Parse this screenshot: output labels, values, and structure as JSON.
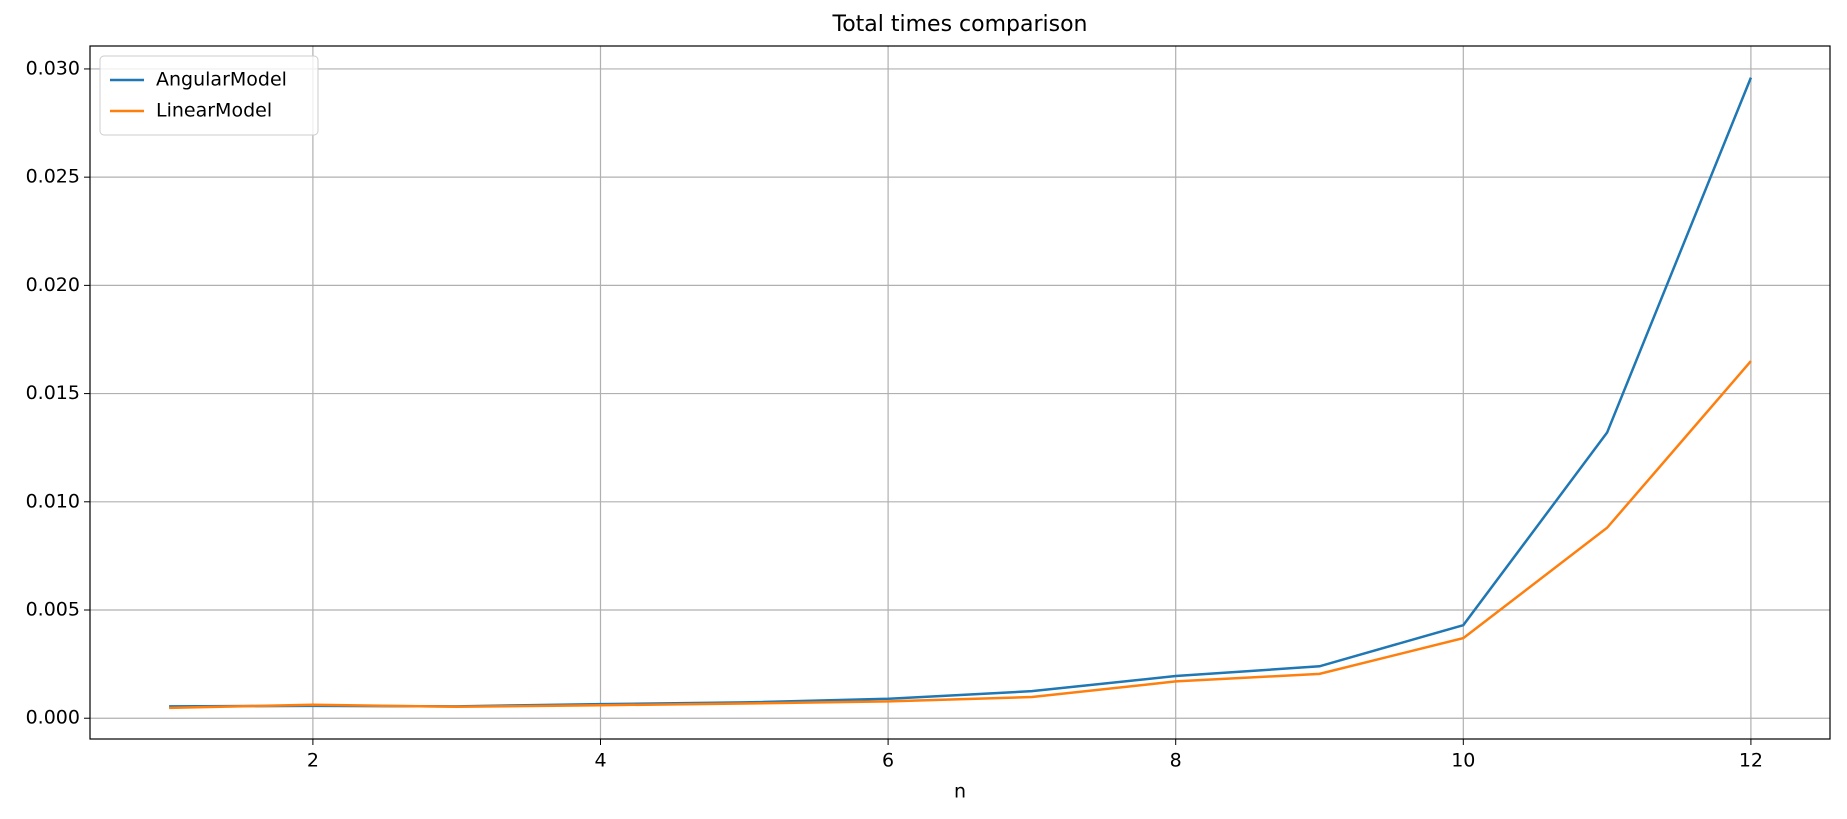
{
  "chart_data": {
    "type": "line",
    "title": "Total times comparison",
    "xlabel": "n",
    "x": [
      1,
      2,
      3,
      4,
      5,
      6,
      7,
      8,
      9,
      10,
      11,
      12
    ],
    "series": [
      {
        "name": "AngularModel",
        "color": "#1f77b4",
        "values": [
          0.00055,
          0.00057,
          0.00055,
          0.00065,
          0.00073,
          0.0009,
          0.00125,
          0.00195,
          0.0024,
          0.0043,
          0.0132,
          0.0296
        ]
      },
      {
        "name": "LinearModel",
        "color": "#ff7f0e",
        "values": [
          0.00048,
          0.00062,
          0.00053,
          0.0006,
          0.00068,
          0.00078,
          0.00098,
          0.0017,
          0.00205,
          0.0037,
          0.0088,
          0.0165
        ]
      }
    ],
    "xlim": [
      0.45,
      12.55
    ],
    "ylim": [
      -0.00096,
      0.03106
    ],
    "xticks": [
      2,
      4,
      6,
      8,
      10,
      12
    ],
    "yticks": [
      {
        "value": 0,
        "label": "0.000"
      },
      {
        "value": 0.005,
        "label": "0.005"
      },
      {
        "value": 0.01,
        "label": "0.010"
      },
      {
        "value": 0.015,
        "label": "0.015"
      },
      {
        "value": 0.02,
        "label": "0.020"
      },
      {
        "value": 0.025,
        "label": "0.025"
      },
      {
        "value": 0.03,
        "label": "0.030"
      }
    ],
    "grid": true,
    "legend": "upper-left"
  }
}
